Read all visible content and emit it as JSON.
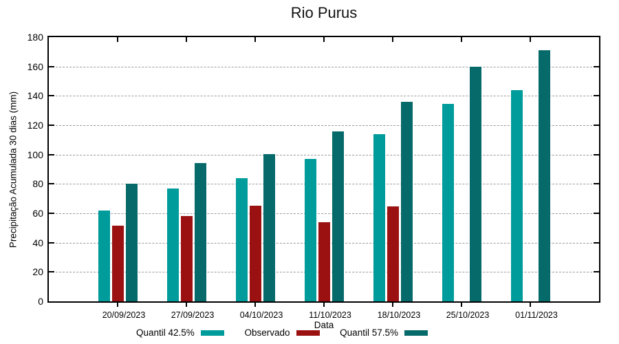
{
  "chart_data": {
    "type": "bar",
    "title": "Rio Purus",
    "xlabel": "Data",
    "ylabel": "Precipitação Acumulada 30 dias (mm)",
    "ylim": [
      0,
      180
    ],
    "ytick_step": 20,
    "yticks": [
      0,
      20,
      40,
      60,
      80,
      100,
      120,
      140,
      160,
      180
    ],
    "grid": "horizontal-dashed",
    "legend_position": "bottom",
    "background_color": "#ffffff",
    "axis_color": "#000000",
    "gridline_color": "#9a9a9a",
    "categories": [
      "20/09/2023",
      "27/09/2023",
      "04/10/2023",
      "11/10/2023",
      "18/10/2023",
      "25/10/2023",
      "01/11/2023"
    ],
    "series": [
      {
        "name": "Quantil 42.5%",
        "color": "#009B9B",
        "values": [
          62,
          77,
          84,
          97,
          114,
          134.5,
          144
        ]
      },
      {
        "name": "Observado",
        "color": "#9B1111",
        "values": [
          51.5,
          58,
          65,
          54,
          64.5,
          null,
          null
        ]
      },
      {
        "name": "Quantil 57.5%",
        "color": "#076A6A",
        "values": [
          80,
          94,
          100.5,
          116,
          136,
          160,
          171
        ]
      }
    ]
  }
}
